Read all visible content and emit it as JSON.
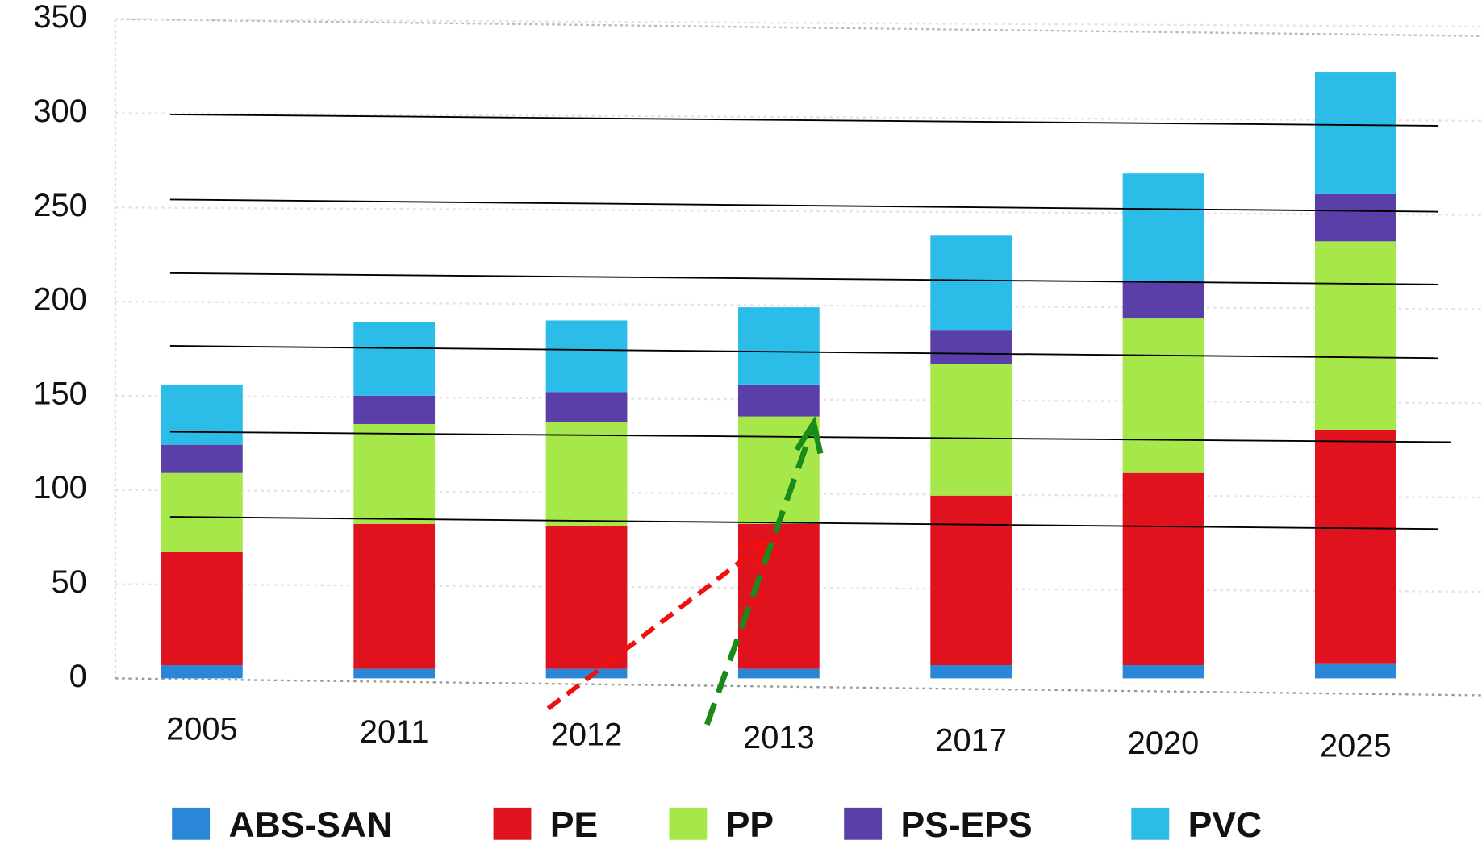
{
  "chart_data": {
    "type": "bar",
    "stacked": true,
    "categories": [
      "2005",
      "2011",
      "2012",
      "2013",
      "2017",
      "2020",
      "2025"
    ],
    "series": [
      {
        "name": "ABS-SAN",
        "color": "#2a86d6",
        "values": [
          7,
          5,
          5,
          5,
          7,
          7,
          8
        ]
      },
      {
        "name": "PE",
        "color": "#e0121e",
        "values": [
          60,
          77,
          76,
          77,
          90,
          102,
          124
        ]
      },
      {
        "name": "PP",
        "color": "#a6e84a",
        "values": [
          42,
          53,
          55,
          57,
          70,
          82,
          100
        ]
      },
      {
        "name": "PS-EPS",
        "color": "#5a3fa8",
        "values": [
          15,
          15,
          16,
          17,
          18,
          20,
          25
        ]
      },
      {
        "name": "PVC",
        "color": "#2bbde8",
        "values": [
          32,
          39,
          38,
          41,
          50,
          57,
          65
        ]
      }
    ],
    "ylim": [
      0,
      350
    ],
    "yticks": [
      0,
      50,
      100,
      150,
      200,
      250,
      300,
      350
    ],
    "grid": true,
    "legend": "bottom"
  }
}
